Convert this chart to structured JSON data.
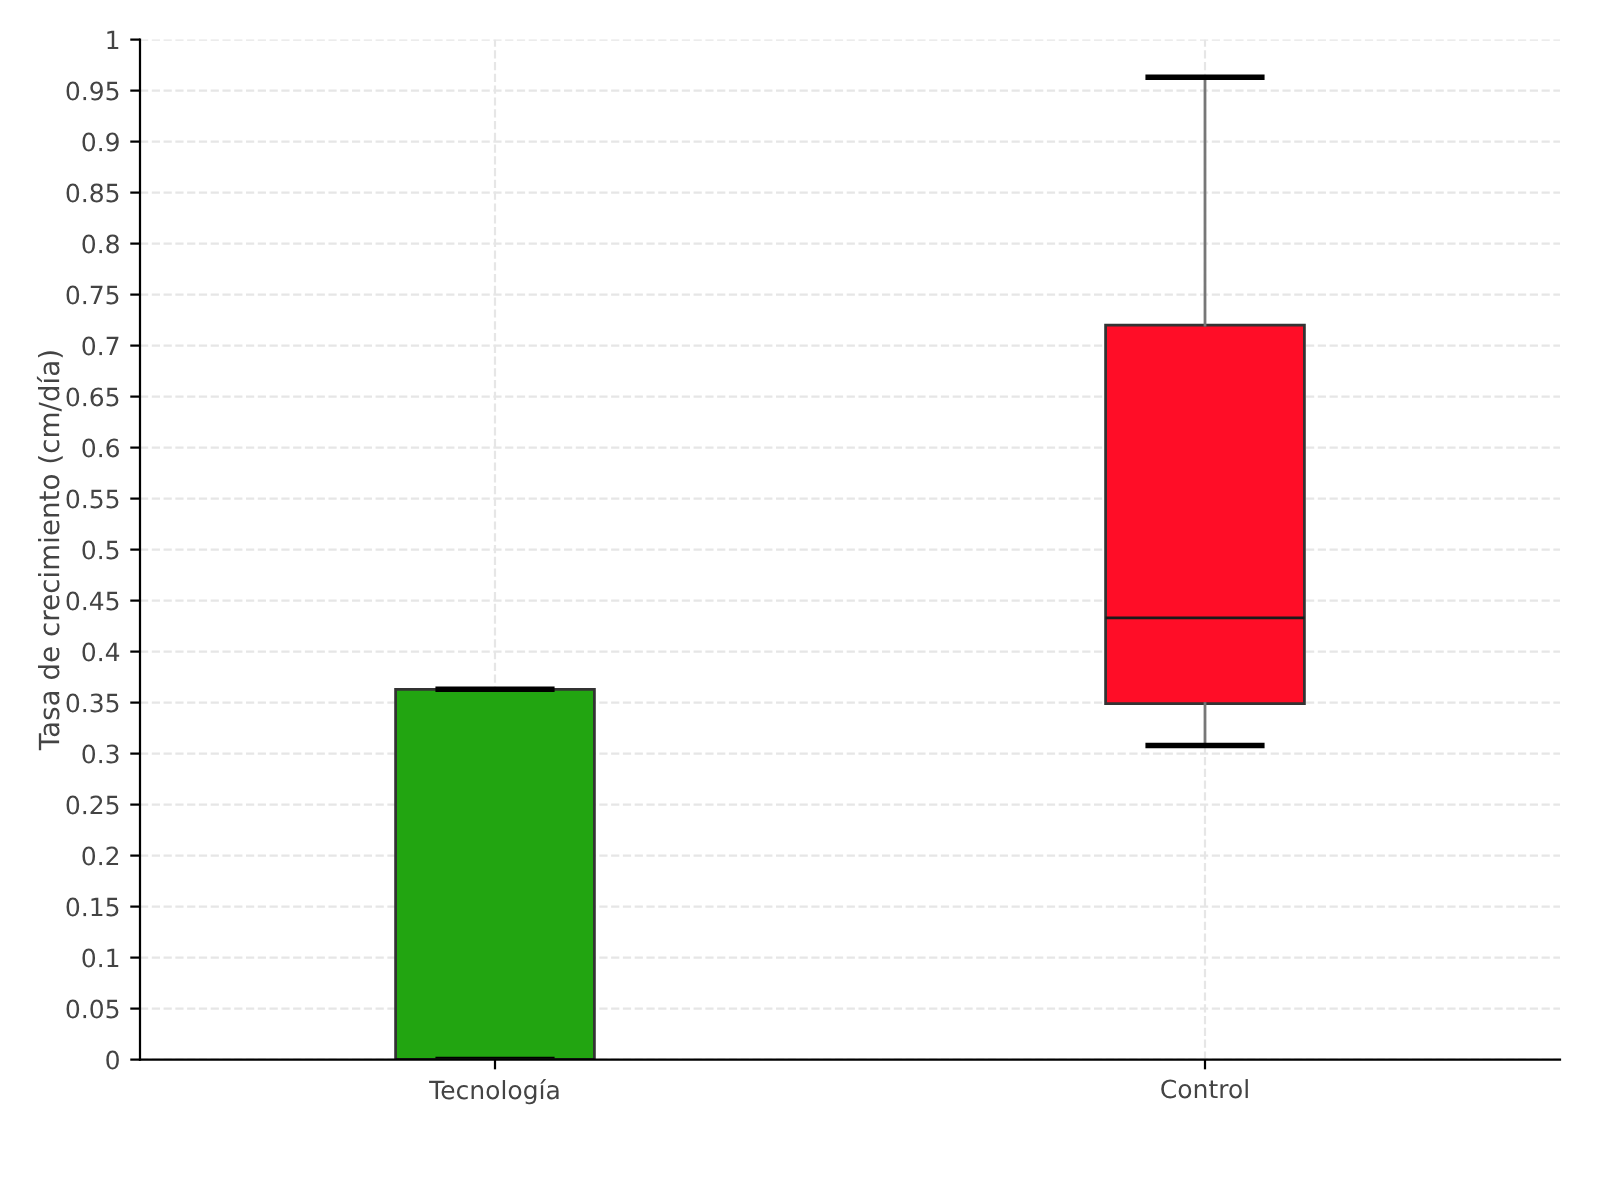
{
  "chart_data": {
    "type": "box",
    "ylabel": "Tasa de crecimiento (cm/día)",
    "categories": [
      "Tecnología",
      "Control"
    ],
    "boxes": [
      {
        "low": 0,
        "q1": 0,
        "median": 0,
        "q3": 0.363,
        "high": 0.363
      },
      {
        "low": 0.308,
        "q1": 0.349,
        "median": 0.433,
        "q3": 0.72,
        "high": 0.963
      }
    ],
    "colors": [
      "#22a511",
      "#ff0d27"
    ],
    "ylim": [
      0,
      1
    ],
    "yticks": [
      0,
      0.05,
      0.1,
      0.15,
      0.2,
      0.25,
      0.3,
      0.35,
      0.4,
      0.45,
      0.5,
      0.55,
      0.6,
      0.65,
      0.7,
      0.75,
      0.8,
      0.85,
      0.9,
      0.95,
      1
    ],
    "grid": true
  }
}
